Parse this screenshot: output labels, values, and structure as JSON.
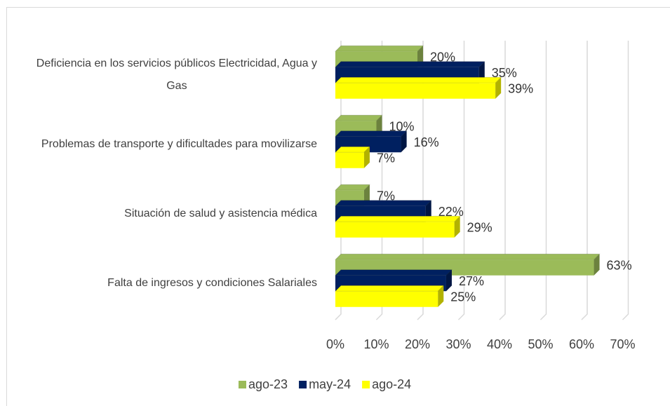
{
  "chart_data": {
    "type": "bar",
    "orientation": "horizontal",
    "three_d": true,
    "categories": [
      "Deficiencia en los servicios públicos Electricidad, Agua y Gas",
      "Problemas de transporte y dificultades para movilizarse",
      "Situación de salud y asistencia médica",
      "Falta de ingresos y condiciones Salariales"
    ],
    "series": [
      {
        "name": "ago-23",
        "color": "#9bbb59",
        "values": [
          20,
          10,
          7,
          63
        ],
        "value_labels": [
          "20%",
          "10%",
          "7%",
          "63%"
        ]
      },
      {
        "name": "may-24",
        "color": "#002060",
        "values": [
          35,
          16,
          22,
          27
        ],
        "value_labels": [
          "35%",
          "16%",
          "22%",
          "27%"
        ]
      },
      {
        "name": "ago-24",
        "color": "#ffff00",
        "values": [
          39,
          7,
          29,
          25
        ],
        "value_labels": [
          "39%",
          "7%",
          "29%",
          "25%"
        ]
      }
    ],
    "xlim": [
      0,
      70
    ],
    "xticks": [
      {
        "value": 0,
        "label": "0%"
      },
      {
        "value": 10,
        "label": "10%"
      },
      {
        "value": 20,
        "label": "20%"
      },
      {
        "value": 30,
        "label": "30%"
      },
      {
        "value": 40,
        "label": "40%"
      },
      {
        "value": 50,
        "label": "50%"
      },
      {
        "value": 60,
        "label": "60%"
      },
      {
        "value": 70,
        "label": "70%"
      }
    ],
    "grid": true,
    "legend": "bottom"
  }
}
